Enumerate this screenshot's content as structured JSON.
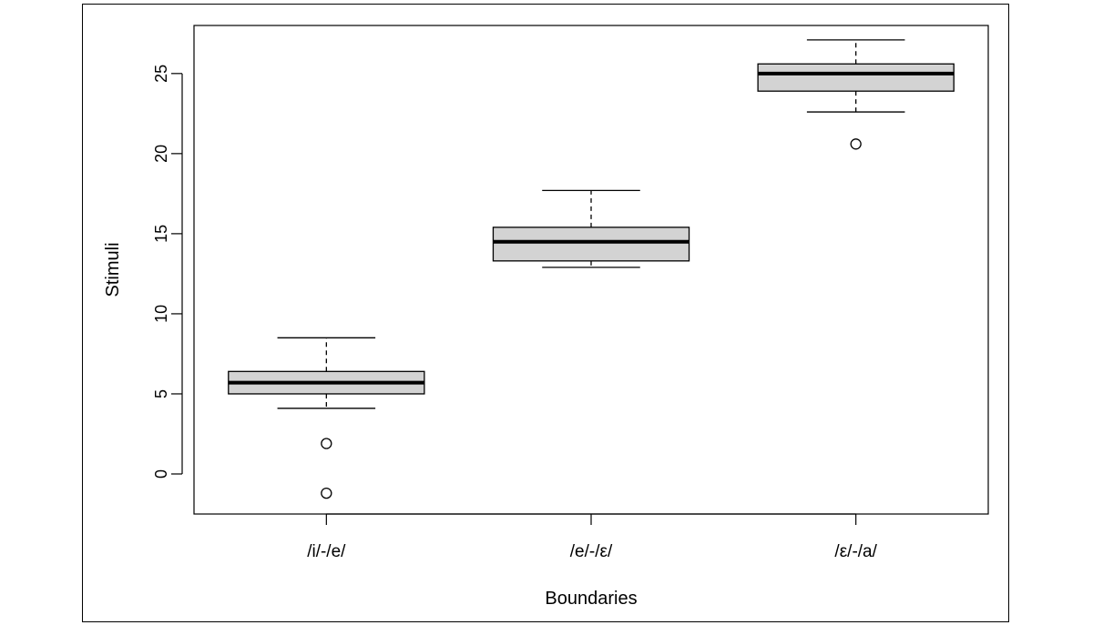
{
  "colors": {
    "box_fill": "#d3d3d3",
    "stroke": "#000000",
    "background": "#ffffff"
  },
  "chart_data": {
    "type": "boxplot",
    "title": "",
    "xlabel": "Boundaries",
    "ylabel": "Stimuli",
    "ylim": [
      -2.5,
      28
    ],
    "yticks": [
      0,
      5,
      10,
      15,
      20,
      25
    ],
    "ytick_labels": [
      "0",
      "5",
      "10",
      "15",
      "20",
      "25"
    ],
    "categories": [
      "/i/-/e/",
      "/e/-/ε/",
      "/ε/-/a/"
    ],
    "boxes": [
      {
        "category": "/i/-/e/",
        "whisker_low": 4.1,
        "q1": 5.0,
        "median": 5.7,
        "q3": 6.4,
        "whisker_high": 8.5,
        "outliers": [
          1.9,
          -1.2
        ]
      },
      {
        "category": "/e/-/ε/",
        "whisker_low": 12.9,
        "q1": 13.3,
        "median": 14.5,
        "q3": 15.4,
        "whisker_high": 17.7,
        "outliers": []
      },
      {
        "category": "/ε/-/a/",
        "whisker_low": 22.6,
        "q1": 23.9,
        "median": 25.0,
        "q3": 25.6,
        "whisker_high": 27.1,
        "outliers": [
          20.6
        ]
      }
    ],
    "grid": false,
    "legend": "none"
  }
}
